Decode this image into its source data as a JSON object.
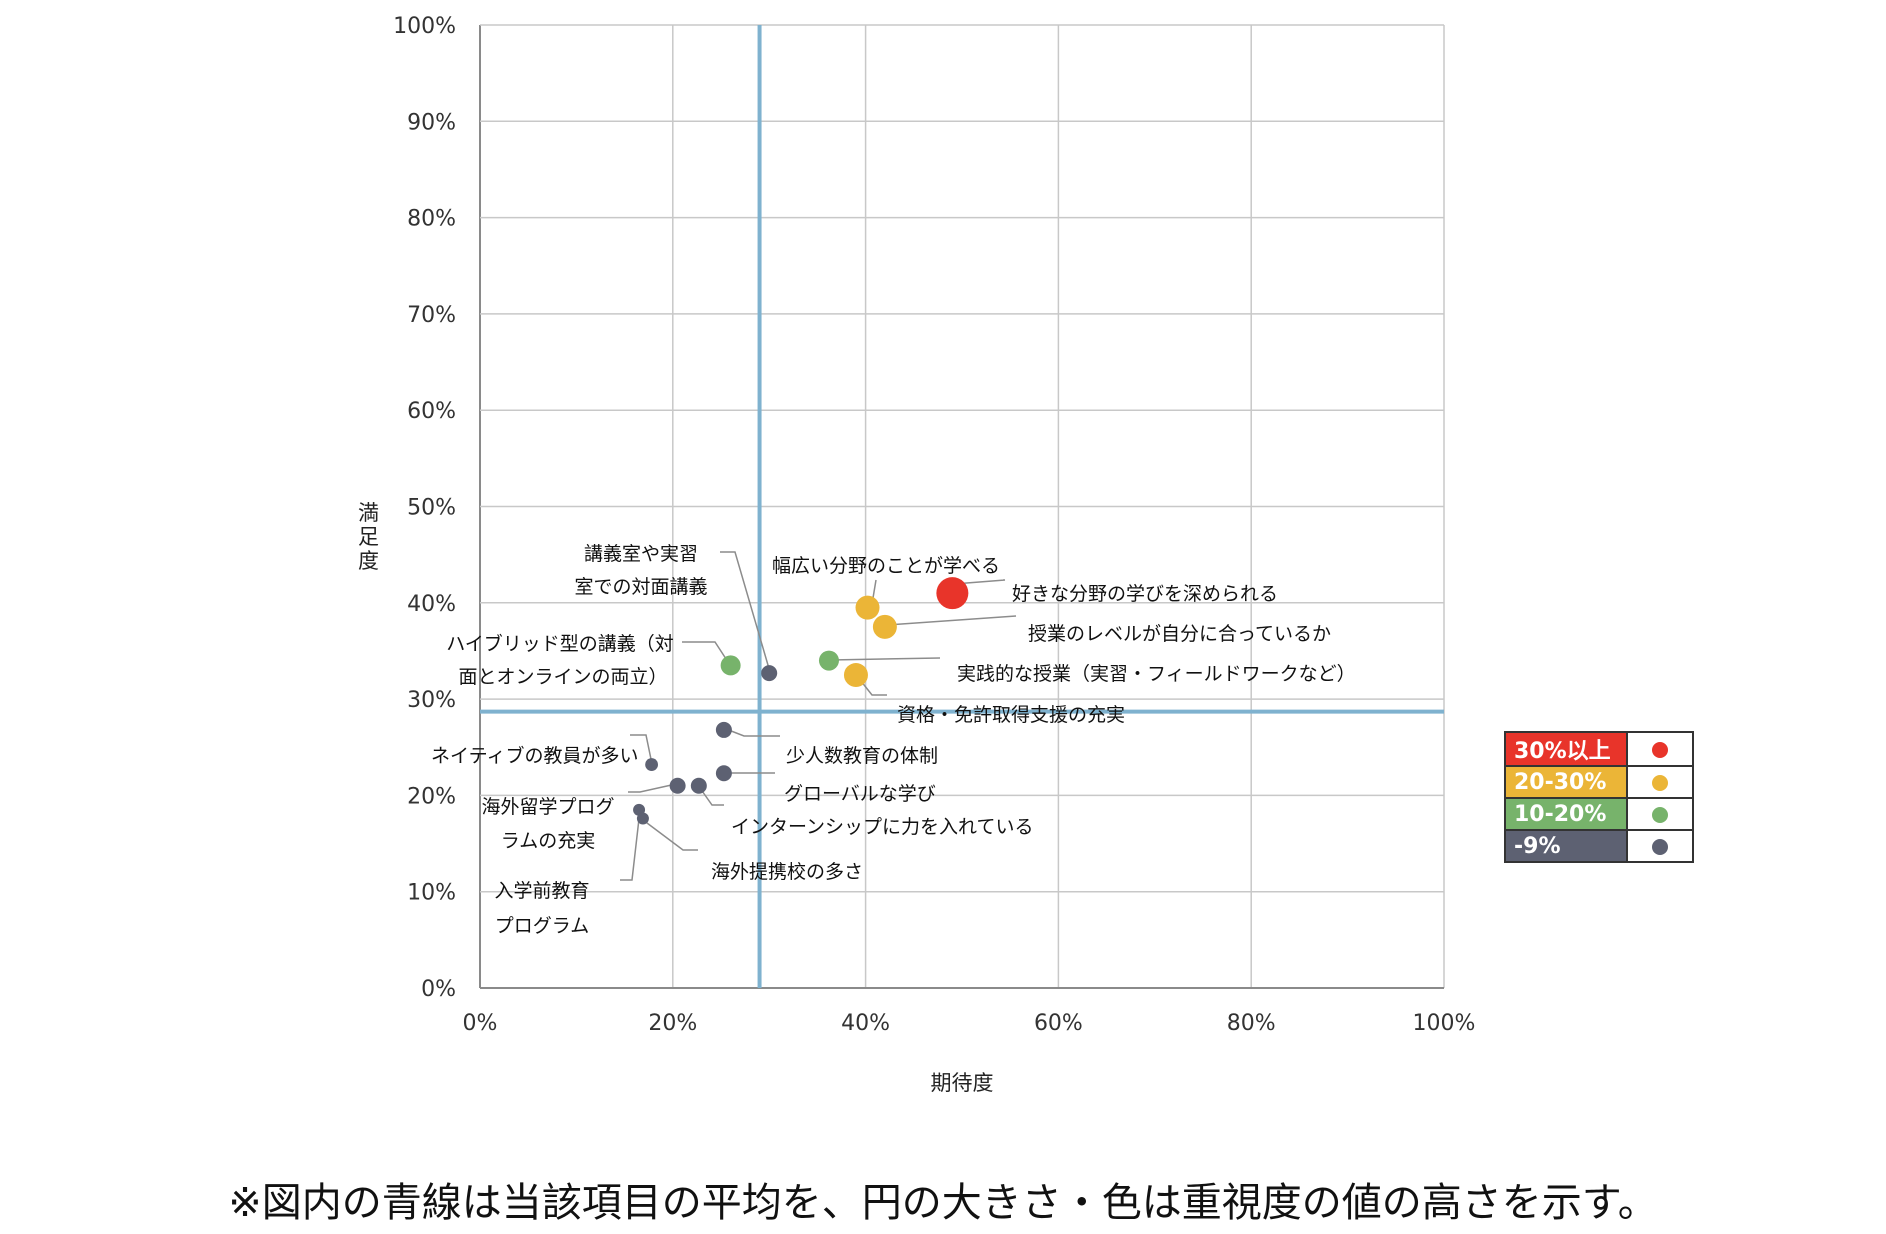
{
  "chart_data": {
    "type": "scatter",
    "title": "",
    "xlabel": "期待度",
    "ylabel": "満足度",
    "xlim": [
      0,
      100
    ],
    "ylim": [
      0,
      100
    ],
    "x_ticks": [
      "0%",
      "20%",
      "40%",
      "60%",
      "80%",
      "100%"
    ],
    "y_ticks": [
      "0%",
      "10%",
      "20%",
      "30%",
      "40%",
      "50%",
      "60%",
      "70%",
      "80%",
      "90%",
      "100%"
    ],
    "grid": true,
    "mean_lines": {
      "x": 29,
      "y": 28.7,
      "color": "#7fb2cf"
    },
    "points": [
      {
        "label": "好きな分野の学びを深められる",
        "x": 49,
        "y": 41,
        "group": "30%以上",
        "size": 3
      },
      {
        "label": "幅広い分野のことが学べる",
        "x": 40.2,
        "y": 39.5,
        "group": "20-30%",
        "size": 2
      },
      {
        "label": "授業のレベルが自分に合っているか",
        "x": 42,
        "y": 37.5,
        "group": "20-30%",
        "size": 2
      },
      {
        "label": "実践的な授業（実習・フィールドワークなど）",
        "x": 36.2,
        "y": 34,
        "group": "10-20%",
        "size": 1.5
      },
      {
        "label": "資格・免許取得支援の充実",
        "x": 39,
        "y": 32.5,
        "group": "20-30%",
        "size": 2
      },
      {
        "label": "講義室や実習室での対面講義",
        "x": 30,
        "y": 32.7,
        "group": "-9%",
        "size": 1
      },
      {
        "label": "ハイブリッド型の講義（対面とオンラインの両立）",
        "x": 26,
        "y": 33.5,
        "group": "10-20%",
        "size": 1.5
      },
      {
        "label": "少人数教育の体制",
        "x": 25.3,
        "y": 26.8,
        "group": "-9%",
        "size": 1
      },
      {
        "label": "ネイティブの教員が多い",
        "x": 17.8,
        "y": 23.2,
        "group": "-9%",
        "size": 0.6
      },
      {
        "label": "グローバルな学び",
        "x": 25.3,
        "y": 22.3,
        "group": "-9%",
        "size": 1
      },
      {
        "label": "海外留学プログラムの充実",
        "x": 20.5,
        "y": 21,
        "group": "-9%",
        "size": 1
      },
      {
        "label": "インターンシップに力を入れている",
        "x": 22.7,
        "y": 21,
        "group": "-9%",
        "size": 1
      },
      {
        "label": "入学前教育プログラム",
        "x": 16.5,
        "y": 18.5,
        "group": "-9%",
        "size": 0.5
      },
      {
        "label": "海外提携校の多さ",
        "x": 16.9,
        "y": 17.6,
        "group": "-9%",
        "size": 0.5
      }
    ],
    "legend": [
      {
        "name": "30%以上",
        "color": "#e8342a"
      },
      {
        "name": "20-30%",
        "color": "#ebb537"
      },
      {
        "name": "10-20%",
        "color": "#77b36b"
      },
      {
        "name": "-9%",
        "color": "#5d6172"
      }
    ],
    "legend_position": "right"
  },
  "footnote": "※図内の青線は当該項目の平均を、円の大きさ・色は重視度の値の高さを示す。"
}
